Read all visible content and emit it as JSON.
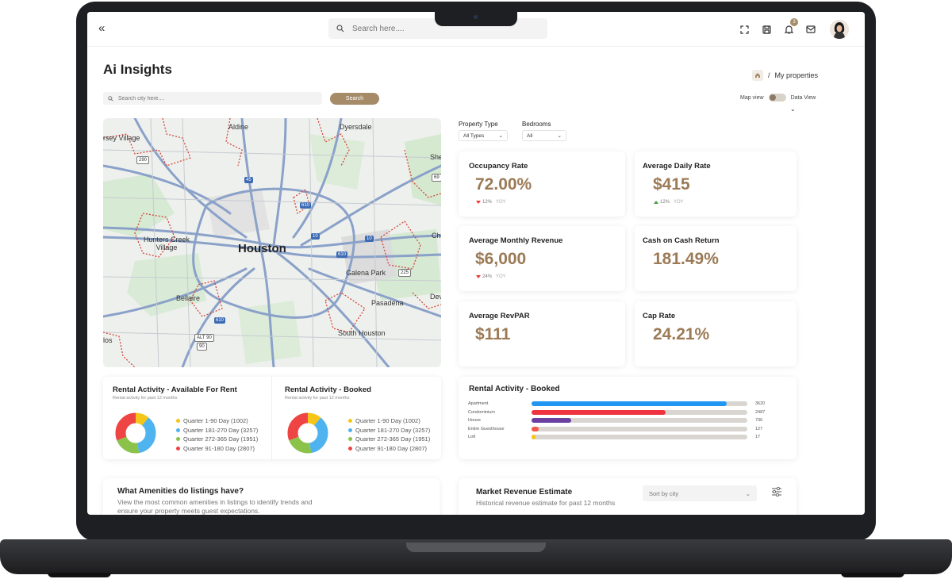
{
  "topbar": {
    "search_placeholder": "Search here....",
    "notification_count": "3",
    "icons": [
      "collapse-icon",
      "search-icon",
      "fullscreen-icon",
      "save-icon",
      "bell-icon",
      "mail-icon",
      "avatar"
    ]
  },
  "page": {
    "title": "Ai Insights",
    "breadcrumb_current": "My properties"
  },
  "city_search": {
    "placeholder": "Search city here....",
    "button_label": "Search"
  },
  "view_toggle": {
    "left_label": "Map view",
    "right_label": "Data View"
  },
  "map": {
    "labels": [
      "Aldine",
      "Dyersdale",
      "rsey Village",
      "Hunters Creek Village",
      "Houston",
      "Galena Park",
      "Bellaire",
      "Pasadena",
      "South Houston",
      "She",
      "Ch",
      "Dev",
      "los"
    ],
    "shields": [
      "290",
      "45",
      "610",
      "10",
      "10",
      "610",
      "69",
      "610",
      "ALT 90",
      "90",
      "225"
    ]
  },
  "filters": {
    "property_type_label": "Property Type",
    "property_type_value": "All Types",
    "bedrooms_label": "Bedrooms",
    "bedrooms_value": "All"
  },
  "metrics": {
    "occupancy": {
      "title": "Occupancy Rate",
      "value": "72.00%",
      "change": "12%",
      "period": "YOY"
    },
    "adr": {
      "title": "Average Daily Rate",
      "value": "$415",
      "change": "12%",
      "period": "YOY"
    },
    "monthly_revenue": {
      "title": "Average Monthly Revenue",
      "value": "$6,000",
      "change": "24%",
      "period": "YOY"
    },
    "cash_on_cash": {
      "title": "Cash on Cash Return",
      "value": "181.49%"
    },
    "revpar": {
      "title": "Average RevPAR",
      "value": "$111"
    },
    "cap_rate": {
      "title": "Cap Rate",
      "value": "24.21%"
    }
  },
  "rental_available": {
    "title": "Rental Activity - Available For Rent",
    "subtitle": "Rental activity for past 12 months",
    "legend": [
      {
        "label": "Quarter 1-90 Day (1002)",
        "value": 1002,
        "color": "#f5c518"
      },
      {
        "label": "Quarter 181-270 Day (3257)",
        "value": 3257,
        "color": "#4fb3f0"
      },
      {
        "label": "Quarter 272-365 Day (1951)",
        "value": 1951,
        "color": "#8bc34a"
      },
      {
        "label": "Quarter 91-180 Day (2807)",
        "value": 2807,
        "color": "#ef4444"
      }
    ]
  },
  "rental_booked_donut": {
    "title": "Rental Activity - Booked",
    "subtitle": "Rental activity for past 12 months",
    "legend": [
      {
        "label": "Quarter 1-90 Day (1002)",
        "value": 1002,
        "color": "#f5c518"
      },
      {
        "label": "Quarter 181-270 Day (3257)",
        "value": 3257,
        "color": "#4fb3f0"
      },
      {
        "label": "Quarter 272-365 Day (1951)",
        "value": 1951,
        "color": "#8bc34a"
      },
      {
        "label": "Quarter 91-180 Day (2807)",
        "value": 2807,
        "color": "#ef4444"
      }
    ]
  },
  "rental_booked_bars": {
    "title": "Rental Activity - Booked",
    "max": 4000,
    "rows": [
      {
        "label": "Apartment",
        "value": 3620,
        "display": "3620",
        "color": "#2196f3"
      },
      {
        "label": "Condominium",
        "value": 2487,
        "display": "2487",
        "color": "#ef3340"
      },
      {
        "label": "House",
        "value": 736,
        "display": "736",
        "color": "#6b3fa0"
      },
      {
        "label": "Entire Guesthouse",
        "value": 127,
        "display": "127",
        "color": "#f15a4a"
      },
      {
        "label": "Loft",
        "value": 17,
        "display": "17",
        "color": "#f5c518"
      }
    ]
  },
  "amenities": {
    "title": "What Amenities do listings have?",
    "subtitle": "View the most common amenities in listings to identify trends and ensure your property meets guest expectations."
  },
  "market_revenue": {
    "title": "Market Revenue Estimate",
    "subtitle": "Historical revenue estimate for past 12 months",
    "sort_placeholder": "Sort by city"
  }
}
